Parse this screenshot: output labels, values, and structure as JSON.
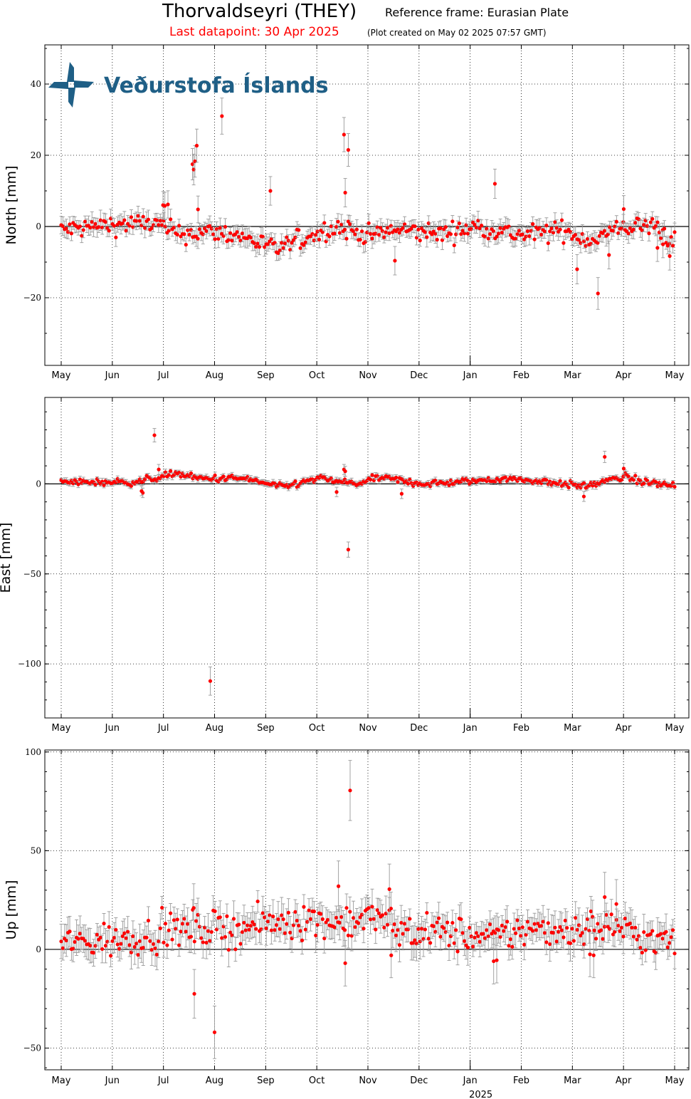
{
  "header": {
    "station": "Thorvaldseyri (THEY)",
    "reference_frame": "Reference frame: Eurasian Plate",
    "last_datapoint": "Last datapoint: 30 Apr 2025",
    "plot_created": "(Plot created on May 02 2025 07:57 GMT)"
  },
  "logo": {
    "text": "Veðurstofa Íslands",
    "color": "#1f5f86"
  },
  "colors": {
    "points": "#ff0000",
    "errorbars": "#999999"
  },
  "chart_data": [
    {
      "type": "scatter",
      "ylabel": "North [mm]",
      "ylim": [
        -39,
        51
      ],
      "yticks": [
        -20,
        0,
        20,
        40
      ],
      "xlabel": "",
      "xticks": [
        "May",
        "Jun",
        "Jul",
        "Aug",
        "Sep",
        "Oct",
        "Nov",
        "Dec",
        "Jan",
        "Feb",
        "Mar",
        "Apr",
        "May"
      ],
      "year_label": "",
      "grid": true,
      "baseline": 0,
      "typical_error_mm": 2.2,
      "outliers": [
        {
          "t": 0.214,
          "v": 17.5
        },
        {
          "t": 0.216,
          "v": 16.0
        },
        {
          "t": 0.218,
          "v": 18.3
        },
        {
          "t": 0.221,
          "v": 22.7
        },
        {
          "t": 0.223,
          "v": 4.8
        },
        {
          "t": 0.166,
          "v": 6.0
        },
        {
          "t": 0.169,
          "v": 5.8
        },
        {
          "t": 0.174,
          "v": 6.2
        },
        {
          "t": 0.262,
          "v": 31.0
        },
        {
          "t": 0.341,
          "v": 10.0
        },
        {
          "t": 0.461,
          "v": 25.8
        },
        {
          "t": 0.463,
          "v": 9.5
        },
        {
          "t": 0.468,
          "v": 21.5
        },
        {
          "t": 0.544,
          "v": -9.6
        },
        {
          "t": 0.707,
          "v": 12.0
        },
        {
          "t": 0.841,
          "v": -12.0
        },
        {
          "t": 0.875,
          "v": -18.8
        },
        {
          "t": 0.893,
          "v": -8.0
        },
        {
          "t": 0.917,
          "v": 4.9
        },
        {
          "t": 0.992,
          "v": -8.3
        },
        {
          "t": 0.972,
          "v": -6.0
        },
        {
          "t": 0.981,
          "v": -5.0
        }
      ],
      "trend": [
        {
          "t": 0.0,
          "v": -1.0
        },
        {
          "t": 0.08,
          "v": 0.5
        },
        {
          "t": 0.15,
          "v": 1.0
        },
        {
          "t": 0.19,
          "v": -2.0
        },
        {
          "t": 0.25,
          "v": -1.5
        },
        {
          "t": 0.3,
          "v": -3.0
        },
        {
          "t": 0.35,
          "v": -6.5
        },
        {
          "t": 0.4,
          "v": -3.0
        },
        {
          "t": 0.45,
          "v": 0.0
        },
        {
          "t": 0.5,
          "v": -2.5
        },
        {
          "t": 0.55,
          "v": -1.0
        },
        {
          "t": 0.62,
          "v": -2.0
        },
        {
          "t": 0.68,
          "v": 0.0
        },
        {
          "t": 0.75,
          "v": -2.5
        },
        {
          "t": 0.82,
          "v": -1.0
        },
        {
          "t": 0.86,
          "v": -4.0
        },
        {
          "t": 0.92,
          "v": 0.0
        },
        {
          "t": 0.97,
          "v": 0.0
        },
        {
          "t": 1.0,
          "v": -4.5
        }
      ]
    },
    {
      "type": "scatter",
      "ylabel": "East [mm]",
      "ylim": [
        -130,
        48
      ],
      "yticks": [
        -100,
        -50,
        0
      ],
      "xlabel": "",
      "xticks": [
        "May",
        "Jun",
        "Jul",
        "Aug",
        "Sep",
        "Oct",
        "Nov",
        "Dec",
        "Jan",
        "Feb",
        "Mar",
        "Apr",
        "May"
      ],
      "year_label": "",
      "grid": true,
      "baseline": 0,
      "typical_error_mm": 1.5,
      "outliers": [
        {
          "t": 0.152,
          "v": 27.0
        },
        {
          "t": 0.133,
          "v": -5.0
        },
        {
          "t": 0.131,
          "v": -4.0
        },
        {
          "t": 0.159,
          "v": 8.0
        },
        {
          "t": 0.243,
          "v": -109.5
        },
        {
          "t": 0.468,
          "v": -36.5
        },
        {
          "t": 0.461,
          "v": 8.0
        },
        {
          "t": 0.463,
          "v": 7.0
        },
        {
          "t": 0.449,
          "v": -4.5
        },
        {
          "t": 0.555,
          "v": -5.5
        },
        {
          "t": 0.852,
          "v": -7.0
        },
        {
          "t": 0.886,
          "v": 15.0
        },
        {
          "t": 0.917,
          "v": 8.5
        }
      ],
      "trend": [
        {
          "t": 0.0,
          "v": 1.0
        },
        {
          "t": 0.12,
          "v": 1.0
        },
        {
          "t": 0.15,
          "v": 3.0
        },
        {
          "t": 0.19,
          "v": 6.0
        },
        {
          "t": 0.22,
          "v": 3.0
        },
        {
          "t": 0.3,
          "v": 3.0
        },
        {
          "t": 0.36,
          "v": -2.0
        },
        {
          "t": 0.42,
          "v": 3.0
        },
        {
          "t": 0.48,
          "v": 0.0
        },
        {
          "t": 0.52,
          "v": 3.5
        },
        {
          "t": 0.59,
          "v": 0.0
        },
        {
          "t": 0.65,
          "v": 1.0
        },
        {
          "t": 0.72,
          "v": 3.0
        },
        {
          "t": 0.8,
          "v": 1.0
        },
        {
          "t": 0.85,
          "v": -1.5
        },
        {
          "t": 0.92,
          "v": 4.0
        },
        {
          "t": 0.95,
          "v": 1.0
        },
        {
          "t": 1.0,
          "v": -1.0
        }
      ]
    },
    {
      "type": "scatter",
      "ylabel": "Up [mm]",
      "ylim": [
        -61,
        101
      ],
      "yticks": [
        -50,
        0,
        50,
        100
      ],
      "xlabel": "",
      "xticks": [
        "May",
        "Jun",
        "Jul",
        "Aug",
        "Sep",
        "Oct",
        "Nov",
        "Dec",
        "Jan",
        "Feb",
        "Mar",
        "Apr",
        "May"
      ],
      "year_label": "2025",
      "grid": true,
      "baseline": 0,
      "typical_error_mm": 7,
      "outliers": [
        {
          "t": 0.471,
          "v": 80.5
        },
        {
          "t": 0.463,
          "v": -7.0
        },
        {
          "t": 0.452,
          "v": 32.0
        },
        {
          "t": 0.25,
          "v": -42.0
        },
        {
          "t": 0.217,
          "v": -22.5
        },
        {
          "t": 0.216,
          "v": 21.0
        },
        {
          "t": 0.538,
          "v": -3.0
        },
        {
          "t": 0.535,
          "v": 30.5
        },
        {
          "t": 0.705,
          "v": -6.0
        },
        {
          "t": 0.71,
          "v": -5.5
        },
        {
          "t": 0.886,
          "v": 26.5
        },
        {
          "t": 0.905,
          "v": 23.0
        },
        {
          "t": 0.868,
          "v": -3.0
        },
        {
          "t": 0.862,
          "v": -2.5
        }
      ],
      "trend": [
        {
          "t": 0.0,
          "v": 3.0
        },
        {
          "t": 0.1,
          "v": 5.0
        },
        {
          "t": 0.2,
          "v": 10.0
        },
        {
          "t": 0.3,
          "v": 11.0
        },
        {
          "t": 0.38,
          "v": 15.0
        },
        {
          "t": 0.45,
          "v": 14.0
        },
        {
          "t": 0.52,
          "v": 16.0
        },
        {
          "t": 0.56,
          "v": 9.0
        },
        {
          "t": 0.62,
          "v": 9.0
        },
        {
          "t": 0.7,
          "v": 5.0
        },
        {
          "t": 0.75,
          "v": 10.0
        },
        {
          "t": 0.82,
          "v": 10.0
        },
        {
          "t": 0.9,
          "v": 12.0
        },
        {
          "t": 0.95,
          "v": 6.0
        },
        {
          "t": 1.0,
          "v": 3.0
        }
      ]
    }
  ]
}
